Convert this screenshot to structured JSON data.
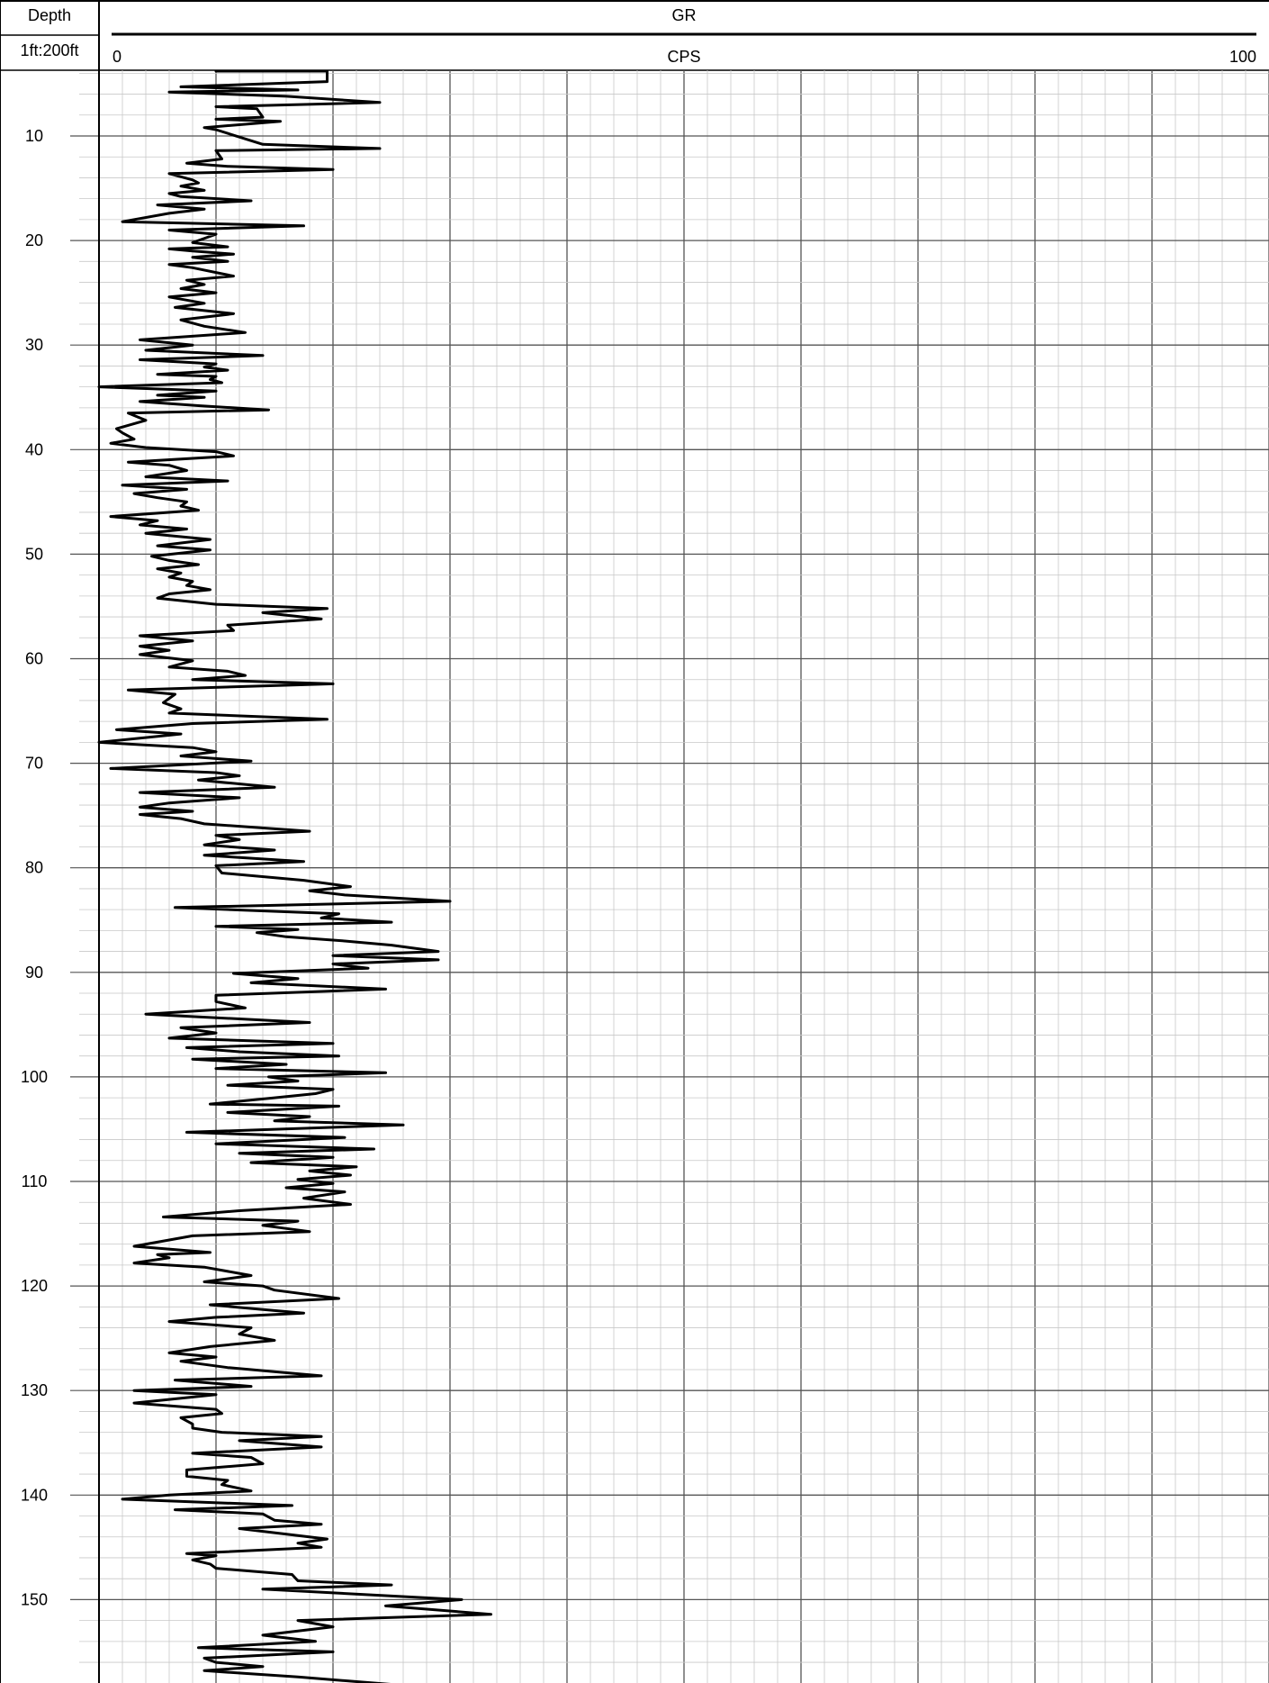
{
  "header": {
    "depth_title": "Depth",
    "scale_label": "1ft:200ft",
    "track_title": "GR",
    "units": "CPS",
    "scale_min": "0",
    "scale_max": "100"
  },
  "chart_data": {
    "type": "line",
    "title": "GR",
    "xlabel": "CPS",
    "ylabel": "Depth",
    "xlim": [
      0,
      100
    ],
    "ylim": [
      3.8,
      159.7
    ],
    "y_inverted": true,
    "grid": true,
    "depth_ticks": [
      10,
      20,
      30,
      40,
      50,
      60,
      70,
      80,
      90,
      100,
      110,
      120,
      130,
      140,
      150
    ],
    "series": [
      {
        "name": "GR",
        "color": "#000000",
        "points": [
          [
            10,
            3.8
          ],
          [
            19.5,
            3.8
          ],
          [
            19.5,
            4.8
          ],
          [
            7,
            5.3
          ],
          [
            17,
            5.6
          ],
          [
            6,
            5.8
          ],
          [
            16,
            6.2
          ],
          [
            24,
            6.8
          ],
          [
            10,
            7.2
          ],
          [
            13.5,
            7.4
          ],
          [
            14,
            8.2
          ],
          [
            10,
            8.4
          ],
          [
            15.5,
            8.6
          ],
          [
            9,
            9.2
          ],
          [
            10,
            9.4
          ],
          [
            14,
            10.8
          ],
          [
            24,
            11.2
          ],
          [
            10,
            11.4
          ],
          [
            10.5,
            12.2
          ],
          [
            7.5,
            12.6
          ],
          [
            11,
            12.9
          ],
          [
            20,
            13.2
          ],
          [
            6,
            13.6
          ],
          [
            8,
            14.2
          ],
          [
            8.5,
            14.5
          ],
          [
            7,
            14.8
          ],
          [
            9,
            15.2
          ],
          [
            6,
            15.5
          ],
          [
            7,
            15.8
          ],
          [
            13,
            16.2
          ],
          [
            5,
            16.6
          ],
          [
            9,
            17.0
          ],
          [
            6,
            17.4
          ],
          [
            2,
            18.2
          ],
          [
            17.5,
            18.6
          ],
          [
            6,
            19.0
          ],
          [
            10,
            19.4
          ],
          [
            8,
            20.2
          ],
          [
            11,
            20.6
          ],
          [
            6,
            20.8
          ],
          [
            8,
            21.0
          ],
          [
            11.5,
            21.3
          ],
          [
            8,
            21.6
          ],
          [
            11,
            22.0
          ],
          [
            6,
            22.3
          ],
          [
            8,
            22.6
          ],
          [
            11.5,
            23.4
          ],
          [
            7.5,
            23.8
          ],
          [
            9,
            24.2
          ],
          [
            7,
            24.6
          ],
          [
            10,
            25.0
          ],
          [
            6,
            25.4
          ],
          [
            9,
            26.0
          ],
          [
            6.5,
            26.4
          ],
          [
            11.5,
            27.0
          ],
          [
            7,
            27.6
          ],
          [
            9,
            28.2
          ],
          [
            12.5,
            28.8
          ],
          [
            3.5,
            29.5
          ],
          [
            8,
            30.0
          ],
          [
            4,
            30.5
          ],
          [
            14,
            31.0
          ],
          [
            3.5,
            31.4
          ],
          [
            10,
            31.8
          ],
          [
            9,
            32.1
          ],
          [
            11,
            32.4
          ],
          [
            5,
            32.8
          ],
          [
            10,
            33.0
          ],
          [
            9.5,
            33.3
          ],
          [
            10.5,
            33.6
          ],
          [
            0,
            34.0
          ],
          [
            10,
            34.4
          ],
          [
            5,
            34.8
          ],
          [
            9,
            35.0
          ],
          [
            3.5,
            35.4
          ],
          [
            8.5,
            35.8
          ],
          [
            14.5,
            36.2
          ],
          [
            2.5,
            36.5
          ],
          [
            4,
            37.2
          ],
          [
            1.5,
            38.0
          ],
          [
            2,
            38.4
          ],
          [
            3,
            39.0
          ],
          [
            1,
            39.4
          ],
          [
            4,
            39.8
          ],
          [
            10,
            40.2
          ],
          [
            11.5,
            40.6
          ],
          [
            2.5,
            41.2
          ],
          [
            6,
            41.5
          ],
          [
            7.5,
            42.0
          ],
          [
            4,
            42.6
          ],
          [
            11,
            43.0
          ],
          [
            2,
            43.4
          ],
          [
            7.5,
            43.8
          ],
          [
            3,
            44.2
          ],
          [
            5,
            44.6
          ],
          [
            7.5,
            45.0
          ],
          [
            7,
            45.4
          ],
          [
            8.5,
            45.8
          ],
          [
            1,
            46.4
          ],
          [
            5,
            46.8
          ],
          [
            3.5,
            47.2
          ],
          [
            7.5,
            47.6
          ],
          [
            4,
            48.0
          ],
          [
            9.5,
            48.6
          ],
          [
            5,
            49.2
          ],
          [
            9.5,
            49.6
          ],
          [
            4.5,
            50.2
          ],
          [
            6,
            50.6
          ],
          [
            8.5,
            51.0
          ],
          [
            5,
            51.4
          ],
          [
            7,
            51.8
          ],
          [
            6,
            52.2
          ],
          [
            8,
            52.6
          ],
          [
            7.5,
            53.0
          ],
          [
            9.5,
            53.4
          ],
          [
            6,
            53.8
          ],
          [
            5,
            54.2
          ],
          [
            10,
            54.8
          ],
          [
            19.5,
            55.2
          ],
          [
            14,
            55.6
          ],
          [
            19,
            56.2
          ],
          [
            11,
            56.8
          ],
          [
            11.5,
            57.3
          ],
          [
            3.5,
            57.8
          ],
          [
            8,
            58.3
          ],
          [
            3.5,
            58.8
          ],
          [
            6,
            59.2
          ],
          [
            3.5,
            59.6
          ],
          [
            8,
            60.2
          ],
          [
            6,
            60.8
          ],
          [
            11,
            61.2
          ],
          [
            12.5,
            61.6
          ],
          [
            8,
            62.0
          ],
          [
            20,
            62.4
          ],
          [
            2.5,
            63.0
          ],
          [
            6.5,
            63.4
          ],
          [
            6,
            63.8
          ],
          [
            5.5,
            64.2
          ],
          [
            7,
            64.8
          ],
          [
            6,
            65.2
          ],
          [
            19.5,
            65.8
          ],
          [
            8,
            66.2
          ],
          [
            1.5,
            66.8
          ],
          [
            7,
            67.2
          ],
          [
            0,
            68.0
          ],
          [
            8,
            68.5
          ],
          [
            10,
            68.9
          ],
          [
            7,
            69.3
          ],
          [
            13,
            69.8
          ],
          [
            1,
            70.5
          ],
          [
            10,
            70.9
          ],
          [
            12,
            71.2
          ],
          [
            8.5,
            71.6
          ],
          [
            15,
            72.3
          ],
          [
            3.5,
            72.8
          ],
          [
            12,
            73.3
          ],
          [
            6,
            73.8
          ],
          [
            3.5,
            74.2
          ],
          [
            8,
            74.6
          ],
          [
            3.5,
            74.9
          ],
          [
            7,
            75.3
          ],
          [
            9,
            75.8
          ],
          [
            18,
            76.5
          ],
          [
            10,
            76.9
          ],
          [
            12,
            77.3
          ],
          [
            9,
            77.8
          ],
          [
            15,
            78.3
          ],
          [
            9,
            78.8
          ],
          [
            17.5,
            79.4
          ],
          [
            10,
            79.8
          ],
          [
            10.5,
            80.5
          ],
          [
            17.5,
            81.2
          ],
          [
            21.5,
            81.8
          ],
          [
            18,
            82.2
          ],
          [
            21,
            82.6
          ],
          [
            30,
            83.2
          ],
          [
            6.5,
            83.8
          ],
          [
            20.5,
            84.4
          ],
          [
            19,
            84.8
          ],
          [
            25,
            85.2
          ],
          [
            10,
            85.6
          ],
          [
            17,
            85.9
          ],
          [
            13.5,
            86.2
          ],
          [
            16,
            86.6
          ],
          [
            21,
            87.0
          ],
          [
            25,
            87.4
          ],
          [
            29,
            88.0
          ],
          [
            20,
            88.4
          ],
          [
            29,
            88.8
          ],
          [
            20,
            89.2
          ],
          [
            23,
            89.6
          ],
          [
            11.5,
            90.1
          ],
          [
            17,
            90.6
          ],
          [
            13,
            91.0
          ],
          [
            24.5,
            91.6
          ],
          [
            10,
            92.2
          ],
          [
            10,
            92.8
          ],
          [
            12.5,
            93.4
          ],
          [
            4,
            94.0
          ],
          [
            18,
            94.8
          ],
          [
            7,
            95.3
          ],
          [
            10,
            95.8
          ],
          [
            6,
            96.3
          ],
          [
            20,
            96.8
          ],
          [
            7.5,
            97.2
          ],
          [
            12,
            97.6
          ],
          [
            20.5,
            98.0
          ],
          [
            8,
            98.3
          ],
          [
            16,
            98.8
          ],
          [
            10,
            99.2
          ],
          [
            24.5,
            99.6
          ],
          [
            14.5,
            100.0
          ],
          [
            17,
            100.4
          ],
          [
            11,
            100.8
          ],
          [
            20,
            101.2
          ],
          [
            18.5,
            101.6
          ],
          [
            15,
            102.0
          ],
          [
            9.5,
            102.6
          ],
          [
            20.5,
            102.8
          ],
          [
            11,
            103.4
          ],
          [
            18,
            103.8
          ],
          [
            15,
            104.2
          ],
          [
            26,
            104.6
          ],
          [
            7.5,
            105.3
          ],
          [
            21,
            105.8
          ],
          [
            10,
            106.4
          ],
          [
            23.5,
            106.9
          ],
          [
            12,
            107.3
          ],
          [
            20,
            107.7
          ],
          [
            13,
            108.2
          ],
          [
            22,
            108.6
          ],
          [
            18,
            109.0
          ],
          [
            21.5,
            109.4
          ],
          [
            17,
            109.8
          ],
          [
            20,
            110.2
          ],
          [
            16,
            110.6
          ],
          [
            21,
            111.0
          ],
          [
            17.5,
            111.6
          ],
          [
            21.5,
            112.2
          ],
          [
            12,
            112.8
          ],
          [
            5.5,
            113.4
          ],
          [
            17,
            113.8
          ],
          [
            14,
            114.2
          ],
          [
            18,
            114.8
          ],
          [
            8,
            115.2
          ],
          [
            3,
            116.2
          ],
          [
            9.5,
            116.8
          ],
          [
            5,
            117.0
          ],
          [
            6,
            117.3
          ],
          [
            3,
            117.8
          ],
          [
            9,
            118.2
          ],
          [
            13,
            119.0
          ],
          [
            9,
            119.6
          ],
          [
            14,
            120.0
          ],
          [
            15,
            120.4
          ],
          [
            20.5,
            121.2
          ],
          [
            9.5,
            121.8
          ],
          [
            17.5,
            122.6
          ],
          [
            10,
            123.0
          ],
          [
            6,
            123.4
          ],
          [
            13,
            124.0
          ],
          [
            12,
            124.6
          ],
          [
            15,
            125.2
          ],
          [
            9.5,
            125.8
          ],
          [
            6,
            126.4
          ],
          [
            10,
            126.8
          ],
          [
            7,
            127.2
          ],
          [
            11,
            127.8
          ],
          [
            19,
            128.6
          ],
          [
            6.5,
            129.0
          ],
          [
            13,
            129.6
          ],
          [
            3,
            130.0
          ],
          [
            10,
            130.4
          ],
          [
            3,
            131.2
          ],
          [
            10,
            131.8
          ],
          [
            10.5,
            132.2
          ],
          [
            7,
            132.6
          ],
          [
            8,
            133.2
          ],
          [
            8,
            133.6
          ],
          [
            10.5,
            134.0
          ],
          [
            19,
            134.4
          ],
          [
            12,
            134.8
          ],
          [
            19,
            135.4
          ],
          [
            8,
            136.0
          ],
          [
            13,
            136.4
          ],
          [
            14,
            137.0
          ],
          [
            7.5,
            137.6
          ],
          [
            7.5,
            138.2
          ],
          [
            11,
            138.6
          ],
          [
            10.5,
            139.0
          ],
          [
            13,
            139.6
          ],
          [
            6,
            140.0
          ],
          [
            2,
            140.4
          ],
          [
            16.5,
            141.0
          ],
          [
            6.5,
            141.4
          ],
          [
            14,
            141.8
          ],
          [
            15,
            142.4
          ],
          [
            19,
            142.8
          ],
          [
            12,
            143.2
          ],
          [
            19.5,
            144.2
          ],
          [
            17,
            144.6
          ],
          [
            19,
            145.0
          ],
          [
            7.5,
            145.6
          ],
          [
            10,
            145.8
          ],
          [
            8,
            146.2
          ],
          [
            9.5,
            146.6
          ],
          [
            10,
            147.0
          ],
          [
            16.5,
            147.6
          ],
          [
            17,
            148.2
          ],
          [
            25,
            148.6
          ],
          [
            14,
            149.0
          ],
          [
            31,
            150.0
          ],
          [
            24.5,
            150.6
          ],
          [
            33.5,
            151.4
          ],
          [
            17,
            152.0
          ],
          [
            20,
            152.6
          ],
          [
            14,
            153.4
          ],
          [
            18.5,
            154.0
          ],
          [
            8.5,
            154.6
          ],
          [
            20,
            155.0
          ],
          [
            9,
            155.6
          ],
          [
            10,
            156.0
          ],
          [
            14,
            156.4
          ],
          [
            9,
            156.8
          ],
          [
            17,
            157.4
          ],
          [
            26,
            158.2
          ],
          [
            17,
            158.6
          ],
          [
            17,
            159.0
          ],
          [
            20,
            159.4
          ],
          [
            28.5,
            159.7
          ]
        ]
      }
    ]
  }
}
